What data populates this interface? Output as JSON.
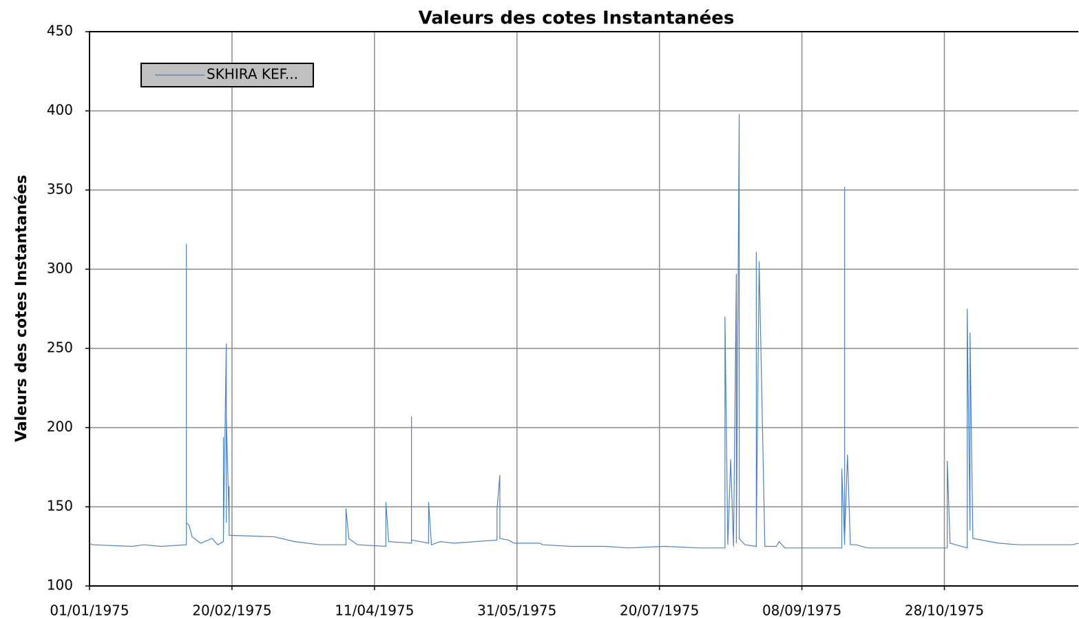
{
  "chart_data": {
    "type": "line",
    "title": "Valeurs des cotes Instantanées",
    "y_label": "Valeurs des cotes  Instantanées",
    "grid": true,
    "legend": "top-left",
    "ylim": [
      100,
      450
    ],
    "yticks": [
      100,
      150,
      200,
      250,
      300,
      350,
      400,
      450
    ],
    "xlim": [
      "01/01/1975",
      "14/12/1975"
    ],
    "xticks": [
      "01/01/1975",
      "20/02/1975",
      "11/04/1975",
      "31/05/1975",
      "20/07/1975",
      "08/09/1975",
      "28/10/1975"
    ],
    "x": [
      "01/01/1975",
      "02/01/1975",
      "16/01/1975",
      "20/01/1975",
      "26/01/1975",
      "04/02/1975",
      "04/02/1975",
      "04/02/1975",
      "04/02/1975",
      "04/02/1975",
      "05/02/1975",
      "06/02/1975",
      "09/02/1975",
      "13/02/1975",
      "15/02/1975",
      "17/02/1975",
      "17/02/1975",
      "17/02/1975",
      "18/02/1975",
      "18/02/1975",
      "18/02/1975",
      "19/02/1975",
      "19/02/1975",
      "19/02/1975",
      "07/03/1975",
      "14/03/1975",
      "23/03/1975",
      "01/04/1975",
      "01/04/1975",
      "02/04/1975",
      "05/04/1975",
      "15/04/1975",
      "15/04/1975",
      "16/04/1975",
      "24/04/1975",
      "24/04/1975",
      "24/04/1975",
      "30/04/1975",
      "30/04/1975",
      "01/05/1975",
      "04/05/1975",
      "09/05/1975",
      "24/05/1975",
      "24/05/1975",
      "25/05/1975",
      "25/05/1975",
      "28/05/1975",
      "30/05/1975",
      "08/06/1975",
      "09/06/1975",
      "19/06/1975",
      "01/07/1975",
      "09/07/1975",
      "22/07/1975",
      "03/08/1975",
      "12/08/1975",
      "12/08/1975",
      "13/08/1975",
      "14/08/1975",
      "15/08/1975",
      "16/08/1975",
      "16/08/1975",
      "17/08/1975",
      "17/08/1975",
      "19/08/1975",
      "23/08/1975",
      "23/08/1975",
      "23/08/1975",
      "24/08/1975",
      "26/08/1975",
      "30/08/1975",
      "31/08/1975",
      "02/09/1975",
      "22/09/1975",
      "22/09/1975",
      "23/09/1975",
      "23/09/1975",
      "23/09/1975",
      "24/09/1975",
      "25/09/1975",
      "27/09/1975",
      "01/10/1975",
      "29/10/1975",
      "29/10/1975",
      "30/10/1975",
      "05/11/1975",
      "05/11/1975",
      "06/11/1975",
      "06/11/1975",
      "07/11/1975",
      "16/11/1975",
      "23/11/1975",
      "12/12/1975",
      "14/12/1975"
    ],
    "series": [
      {
        "name": "SKHIRA KEF...",
        "color": "#4f81bd",
        "values": [
          127,
          126,
          125,
          126,
          125,
          126,
          316,
          157,
          307,
          140,
          138,
          131,
          127,
          130,
          126,
          128,
          194,
          130,
          253,
          140,
          207,
          140,
          163,
          132,
          131,
          128,
          126,
          126,
          149,
          130,
          126,
          125,
          153,
          128,
          127,
          207,
          129,
          127,
          153,
          126,
          128,
          127,
          129,
          148,
          170,
          130,
          129,
          127,
          127,
          126,
          125,
          125,
          124,
          125,
          124,
          124,
          270,
          126,
          180,
          125,
          297,
          127,
          398,
          130,
          126,
          125,
          311,
          130,
          305,
          125,
          125,
          128,
          124,
          124,
          174,
          126,
          352,
          130,
          183,
          126,
          126,
          124,
          124,
          179,
          127,
          124,
          275,
          135,
          260,
          130,
          127,
          126,
          126,
          127
        ]
      }
    ]
  }
}
